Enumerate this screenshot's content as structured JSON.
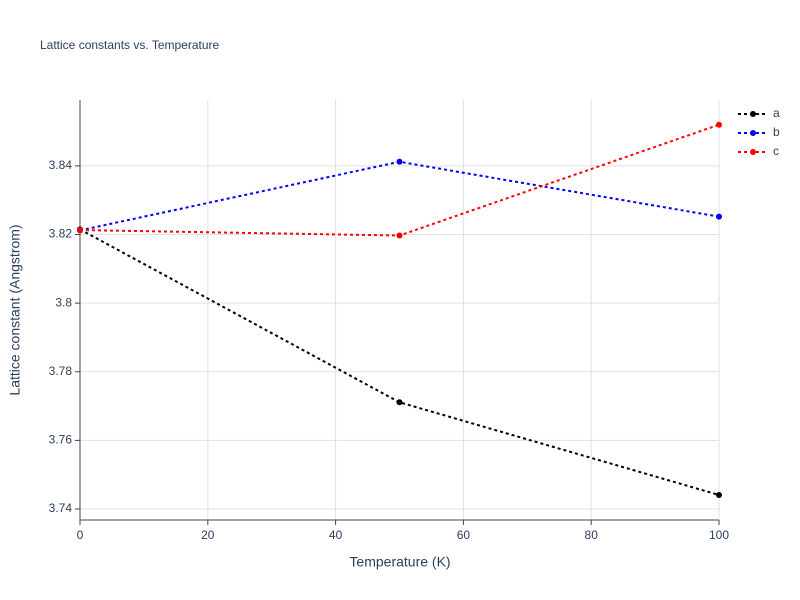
{
  "chart_data": {
    "type": "line",
    "title": "Lattice constants vs. Temperature",
    "x_label": "Temperature (K)",
    "y_label": "Lattice constant (Angstrom)",
    "x": [
      0,
      50,
      100
    ],
    "series": [
      {
        "name": "a",
        "color": "#000000",
        "values": [
          3.8215,
          3.7711,
          3.7441
        ]
      },
      {
        "name": "b",
        "color": "#0000ff",
        "values": [
          3.8212,
          3.8412,
          3.8252
        ]
      },
      {
        "name": "c",
        "color": "#ff0000",
        "values": [
          3.8213,
          3.8197,
          3.852
        ]
      }
    ],
    "xlim": [
      0,
      100
    ],
    "xticks": [
      0,
      20,
      40,
      60,
      80,
      100
    ],
    "ylim": [
      3.7368,
      3.8592
    ],
    "yticks": [
      3.74,
      3.76,
      3.78,
      3.8,
      3.82,
      3.84
    ],
    "grid": true,
    "line_style": "dotted",
    "legend": "top-right"
  }
}
